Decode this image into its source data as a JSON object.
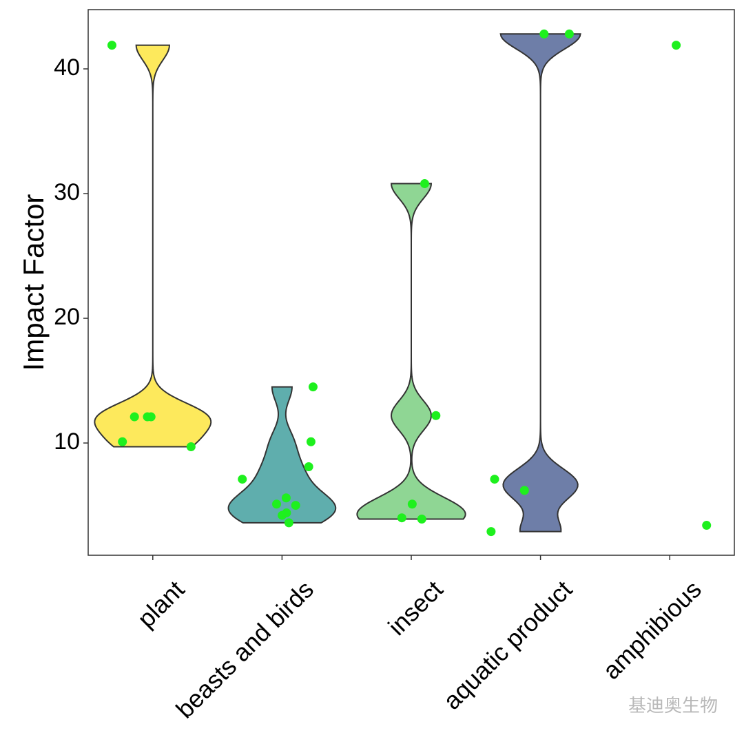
{
  "chart_data": {
    "type": "violin",
    "y_label": "Impact Factor",
    "categories": [
      "plant",
      "beasts and birds",
      "insect",
      "aquatic product",
      "amphibious"
    ],
    "colors": [
      "#fde95c",
      "#5faead",
      "#8fd694",
      "#6e7ea8",
      null
    ],
    "point_color": "#1ef01e",
    "values": [
      [
        41.9,
        12.1,
        12.1,
        12.1,
        10.1,
        9.7
      ],
      [
        14.5,
        10.1,
        8.1,
        7.1,
        5.6,
        5.1,
        5.0,
        4.4,
        4.2,
        3.6
      ],
      [
        30.8,
        12.2,
        5.1,
        4.0,
        3.9
      ],
      [
        42.8,
        42.8,
        7.1,
        6.2,
        2.9
      ],
      [
        41.9,
        3.4
      ]
    ],
    "ylim": [
      1.0,
      44.75
    ],
    "yticks": [
      10,
      20,
      30,
      40
    ],
    "watermark": "基迪奥生物"
  }
}
